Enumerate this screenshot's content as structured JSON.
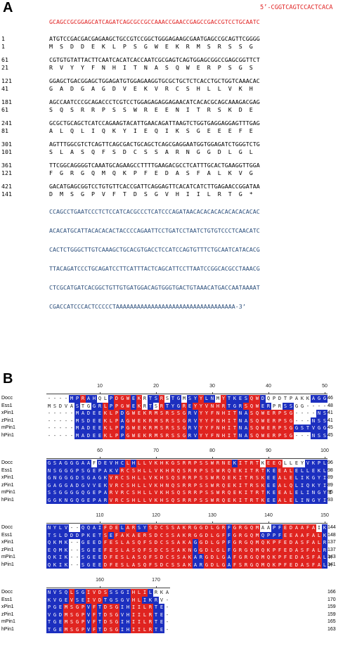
{
  "panel_a": {
    "label": "A",
    "five_prime": "5’-CGGTCAGTCCACTCACA",
    "red_seq": "GCAGCCGCGGAGCATCAGATCAGCGCCGCCAAACCGAACCGAGCCGACCGTCCTGCAATC",
    "blocks": [
      {
        "nt_num": "1",
        "aa_num": "1",
        "nt": "ATGTCCGACGACGAGAAGCTGCCGTCCGGCTGGGAGAAGCGAATGAGCCGCAGTTCGGGG",
        "aa": "M  S  D  D  E  K  L  P  S  G  W  E  K  R  M  S  R  S  S  G"
      },
      {
        "nt_num": "61",
        "aa_num": "21",
        "nt": "CGTGTGTATTACTTCAATCACATCACCAATCGCGAGTCAGTGGAGCGGCCGAGCGGTTCT",
        "aa": "R  V  Y  Y  F  N  H  I  T  N  A  S  Q  W  E  R  P  S  G  S"
      },
      {
        "nt_num": "121",
        "aa_num": "41",
        "nt": "GGAGCTGACGGAGCTGGAGATGTGGAGAAGGTGCGCTGCTCTCACCTGCTGGTCAAACAC",
        "aa": "G  A  D  G  A  G  D  V  E  K  V  R  C  S  H  L  L  V  K  H"
      },
      {
        "nt_num": "181",
        "aa_num": "61",
        "nt": "AGCCAATCCCGCAGACCCTCGTCCTGGAGAGAGGAGAACATCACACGCAGCAAAGACGAG",
        "aa": "S  Q  S  R  R  P  S  S  W  R  E  E  N  I  T  R  S  K  D  E"
      },
      {
        "nt_num": "241",
        "aa_num": "81",
        "nt": "GCGCTGCAGCTCATCCAGAAGTACATTGAACAGATTAAGTCTGGTGAGGAGGAGTTTGAG",
        "aa": "A  L  Q  L  I  Q  K  Y  I  E  Q  I  K  S  G  E  E  E  F  E"
      },
      {
        "nt_num": "301",
        "aa_num": "101",
        "nt": "AGTTTGGCGTCTCAGTTCAGCGACTGCAGCTCAGCGAGGAATGGTGGAGATCTGGGTCTG",
        "aa": "S  L  A  S  Q  F  S  D  C  S  S  A  R  N  G  G  D  L  G  L"
      },
      {
        "nt_num": "361",
        "aa_num": "121",
        "nt": "TTCGGCAGGGGTCAAATGCAGAAGCCTTTTGAAGACGCCTCATTTGCACTGAAGGTTGGA",
        "aa": "F  G  R  G  Q  M  Q  K  P  F  E  D  A  S  F  A  L  K  V  G"
      },
      {
        "nt_num": "421",
        "aa_num": "141",
        "nt": "GACATGAGCGGTCCTGTGTTCACCGATTCAGGAGTTCACATCATCTTGAGAACCGGATAA",
        "aa": "D  M  S  G  P  V  F  T  D  S  G  V  H  I  I  L  R  T  G  *"
      }
    ],
    "utr": [
      "CCAGCCTGAATCCCTCTCCATCACGCCCTCATCCCAGATAACACACACACACACACACAC",
      "ACACATGCATTACACACACTACCCCAGAATTCCTGATCCTAATCTGTGTCCCTCAACATC",
      "CACTCTGGGCTTGTCAAAGCTGCACGTGACCTCCATCCAGTGTTTCTGCAATCATACACG",
      "TTACAGATCCCTGCAGATCCTTCATTTACTCAGCATTCCTTAATCCGGCACGCCTAAACG",
      "CTCGCATGATCACGGCTGTTGTGATGGACAGTGGGTGACTGTAAACATGACCAATAAAAT",
      "CGACCATCCCACTCCCCCTAAAAAAAAAAAAAAAAAAAAAAAAAAAAAAAAAA-3’"
    ]
  },
  "panel_b": {
    "label": "B",
    "names": [
      "Docc",
      "Ess1",
      "xPin1",
      "zPin1",
      "mPin1",
      "hPin1"
    ],
    "blocks": [
      {
        "ticks": [
          "10",
          "20",
          "30",
          "40",
          "50"
        ],
        "tick_cols": [
          10,
          20,
          30,
          40,
          50
        ],
        "ends": [
          "46",
          "48",
          "41",
          "41",
          "45",
          "45"
        ],
        "rows": [
          "----MPRAHQLPDGWEKRTSRSTGMSYYLNMYTKESQWDQPDTPAKKAGG",
          "MSDVASTGGRLPPGWEKRTSRTYGREYYVNHRTGRSQWERPRSSGG----",
          "-----MADEEKLPDGWEKRMSRSSGRVYYFNHITNASQWERPSG----NS",
          "-----MSDEEKLPAGWEKRMSRSSGRVYYFNHITNASQWERPSG---NSS",
          "-----MADEEKLPPGWEKRMSRSSGRVYYFNHITNASQWERPSGGSTVGG",
          "-----MADEEKLPPGWEKRMSRSSGRVYYFNHITNASQWERPSG---NSS"
        ],
        "colors": [
          "WWWWBBRBBWWBRRRBRWBBRWBBWBBRBBWRBBBBRRBWWWWWWWWBBB",
          "WWWWWBWWBBRBRRRBRWBWRBBBRBRRRRRRBBBRRRBBWWBBWWWWWW",
          "WWWWWBBBBBRRRBRRRRRRRRRRRBBRRRRRRRBBRRRRRRRRWWWWBB",
          "WWWWWBBBBBRRRBRRRRRRRRRRRBBRRRRRRRBBRRRRRRRRWWWBBB",
          "WWWWWBBBBBRRRBRRRRRRRRRRRBBRRRRRRRBBRRRRRRRRBBBBBB",
          "WWWWWBBBBBRRRBRRRRRRRRRRRBBRRRRRRRBBRRRRRRRRWWWBBB"
        ]
      },
      {
        "ticks": [
          "60",
          "70",
          "80",
          "90",
          "100"
        ],
        "tick_cols": [
          10,
          20,
          30,
          40,
          50
        ],
        "ends": [
          "96",
          "98",
          "89",
          "89",
          "95",
          "93"
        ],
        "rows": [
          "GSAGGGAAFDEVHCLHLLVKHKGSRRPSSWRNEKITRTKEEQLLEYVKPL",
          "NSGGGPSGEPAKVRCSHLLVKHRQSRRPSSWRQEKITRTKEEALELLEKL",
          "GNGGGDSGAGKVRCSHLLVKHSQSRRPSSWRQEKITRSKEEALELIKGYI",
          "GAGGADGVVEKVRCSHLLVKHNQSRRPSSWRQEKITRSKEEALQLIQKYI",
          "SSGGGGQGEPARVRCSHLLVKHSQSRRPSSWRQEKITRTKEEALELINGYI",
          "GGKNGQGEPARVRCSHLLVKHSQSRRPSSWRQEKITRTKEEALELINGYI"
        ],
        "colors": [
          "BBBBBBBBWBBBBBRBRRRRRRRRRRRRRRRRRBRRRRWRRRWWWWBBBB",
          "BBBBBBBBBBBBBRRRRRRRRRRRRRRRRRRRRRRRRRRBBRRRBBBBBB",
          "BBBBBBBBBBBRRRRRRRRRRRRRRRRRRRRRRRRRRRRBBRRRBBBBBB",
          "BBBBBBBBBBBRRRRRRRRRRRRRRRRRRRRRRRRRRRRBBRRRBBBBBB",
          "BBBBBBBBBBBRRRRRRRRRRRRRRRRRRRRRRRRRRRRBBRRRBBBBBB",
          "BBBBBBBBBBBRRRRRRRRRRRRRRRRRRRRRRRRRRRRBBRRRBBBBBB"
        ]
      },
      {
        "ticks": [
          "110",
          "120",
          "130",
          "140",
          "150"
        ],
        "tick_cols": [
          10,
          20,
          30,
          40,
          50
        ],
        "ends": [
          "144",
          "148",
          "137",
          "137",
          "143",
          "141"
        ],
        "rows": [
          "NYLV--QQAIFDELARSYSDCSSAKRGGDLGRFGRGQMAAPFEDAAFAIK",
          "TSLDDDPKETSEFAKAERSDCSSAKRGGDLGFFGRGQMQPPFEEAAFALK",
          "QKMK--GEEDFESLASQFSDCSSAKAGGDLGPFGRGQMQKPFEDASFALR",
          "EQMK--SGEEFESLASQFSDCSSAKNGGDLGLFGRGQMQKPFEDASFALR",
          "QKIK--SGEEDFESLASQFSDCSSAKARGDLGAFGRGQMQKPFEDASFALR",
          "QKIK--SGEEDFESLASQFSDCSSAKARGDLGAFSRGQMQKPFEDASFALR"
        ],
        "colors": [
          "BBBBWWBBBBRRRBRRBBRRRRRRRRRRRRRRBRRRRRWWBBRRRRRRWB",
          "BBBBBBBBBBRBRRRRRRRRRRRRRRRRRRRRBRRRRRBBBBRRRRRRRB",
          "BBBBWWBBBBRRRRRRRRRRRRRRRRBRRRRRBRRRRRRRRRRRRRRRRB",
          "BBBBWWBBBBRRRRRRRRRRRRRRRRBRRRRRBRRRRRRRRRRRRRRRRB",
          "BBBBWWBBBBRRRRRRRRRRRRRRRRBBRRRRBRRRRRRRRRRRRRRRRB",
          "BBBBWWBBBBRRRRRRRRRRRRRRRRBBRRRRBRRRRRRRRRRRRRRRRB"
        ]
      },
      {
        "ticks": [
          "160",
          "170"
        ],
        "tick_cols": [
          10,
          20
        ],
        "ends": [
          "166",
          "170",
          "159",
          "159",
          "165",
          "163"
        ],
        "rows": [
          "NVSQLSGIVDSSSGIHLILRKA",
          "KVGEVSEIVDTGSGVHLIKRV-",
          "PGEMSGPVFTDSGIHIILRTE-",
          "VGDMSGPVFTDSGVHIILRTE-",
          "TGEMSGPVFTDSGIHIILRTE-",
          "TGEMSGPVFTDSGIHIILRTE-"
        ],
        "colors": [
          "BBBBRBBRRRRBBBBRRRBWWW",
          "BBBBRBBRRRBBBBBRRBBBWW",
          "BBBRRRRBRBRRRBBRRRRBBW",
          "BBBRRRRBRBRRRBBRRRRBBW",
          "BBBRRRRBRBRRRBBRRRRBBW",
          "BBBRRRRBRBRRRBBRRRRBBW"
        ]
      }
    ]
  }
}
